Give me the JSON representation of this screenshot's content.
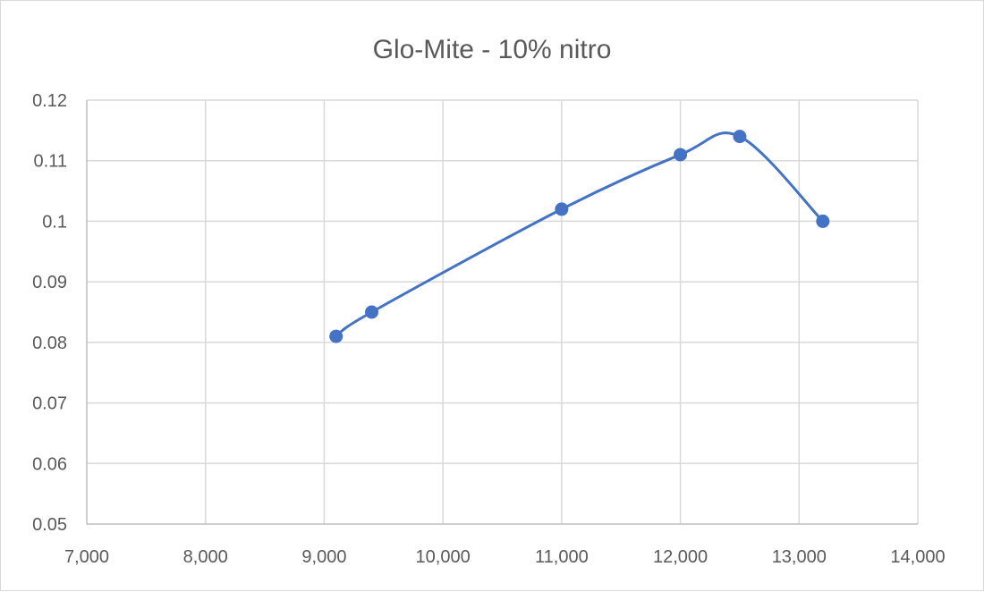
{
  "chart_data": {
    "type": "line",
    "title": "Glo-Mite - 10% nitro",
    "xlabel": "",
    "ylabel": "",
    "xlim": [
      7000,
      14000
    ],
    "ylim": [
      0.05,
      0.12
    ],
    "x_ticks": [
      7000,
      8000,
      9000,
      10000,
      11000,
      12000,
      13000,
      14000
    ],
    "x_tick_labels": [
      "7,000",
      "8,000",
      "9,000",
      "10,000",
      "11,000",
      "12,000",
      "13,000",
      "14,000"
    ],
    "y_ticks": [
      0.05,
      0.06,
      0.07,
      0.08,
      0.09,
      0.1,
      0.11,
      0.12
    ],
    "y_tick_labels": [
      "0.05",
      "0.06",
      "0.07",
      "0.08",
      "0.09",
      "0.1",
      "0.11",
      "0.12"
    ],
    "grid": true,
    "smooth": true,
    "series": [
      {
        "x": [
          9100,
          9400,
          11000,
          12000,
          12500,
          13200
        ],
        "y": [
          0.081,
          0.085,
          0.102,
          0.111,
          0.114,
          0.1
        ],
        "color": "#4472c4"
      }
    ]
  }
}
